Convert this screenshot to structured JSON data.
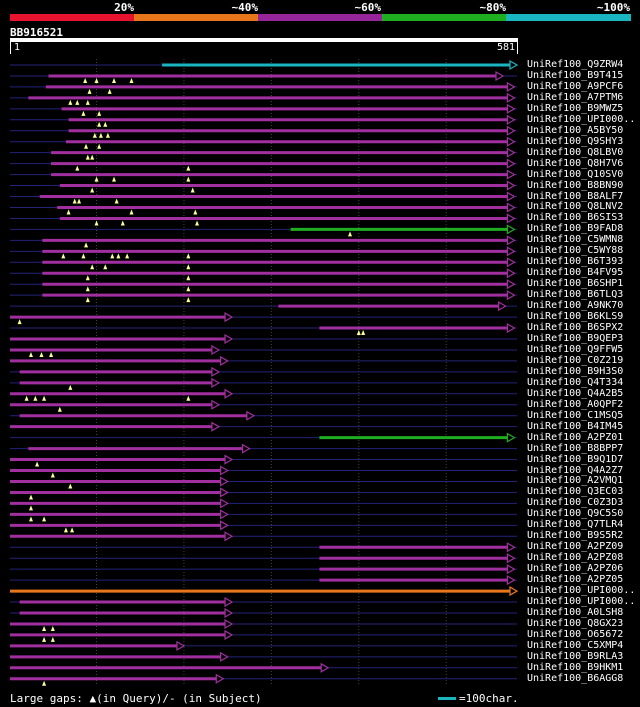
{
  "scale": {
    "labels": [
      "20%",
      "~40%",
      "~60%",
      "~80%",
      "~100%"
    ],
    "colors": [
      "#e8132e",
      "#e8761a",
      "#97259a",
      "#1fae20",
      "#19b6c2"
    ]
  },
  "query": {
    "name": "BB916521",
    "start": "1",
    "end": "581",
    "length": 581
  },
  "footer": {
    "left": "Large gaps: ▲(in Query)/- (in Subject)",
    "right": "=100char."
  },
  "colors": {
    "purple": "#a12fa0",
    "orange": "#e8761a",
    "green": "#1fae20",
    "cyan": "#19b6c2",
    "thin": "#23237a",
    "grid": "#444444",
    "arrow": "#ff88ff"
  },
  "chart_data": {
    "type": "alignment",
    "title": "BB916521",
    "x_range": [
      1,
      581
    ],
    "hits": [
      {
        "name": "UniRef100_Q9ZRW4",
        "start": 175,
        "end": 581,
        "color": "cyan",
        "ins": []
      },
      {
        "name": "UniRef100_B9T415",
        "start": 45,
        "end": 565,
        "color": "purple",
        "ins": [
          87,
          100,
          120,
          140
        ]
      },
      {
        "name": "UniRef100_A9PCF6",
        "start": 42,
        "end": 578,
        "color": "purple",
        "ins": [
          115,
          92
        ]
      },
      {
        "name": "UniRef100_A7PTM6",
        "start": 22,
        "end": 578,
        "color": "purple",
        "ins": [
          70,
          78,
          90
        ]
      },
      {
        "name": "UniRef100_B9MWZ5",
        "start": 60,
        "end": 578,
        "color": "purple",
        "ins": [
          85,
          103
        ]
      },
      {
        "name": "UniRef100_UPI000..",
        "start": 68,
        "end": 578,
        "color": "purple",
        "ins": [
          103,
          110
        ]
      },
      {
        "name": "UniRef100_A5BY50",
        "start": 68,
        "end": 578,
        "color": "purple",
        "ins": [
          98,
          105,
          113
        ]
      },
      {
        "name": "UniRef100_Q9SHY3",
        "start": 65,
        "end": 578,
        "color": "purple",
        "ins": [
          88,
          103
        ]
      },
      {
        "name": "UniRef100_Q8LBV0",
        "start": 48,
        "end": 578,
        "color": "purple",
        "ins": [
          90,
          95
        ]
      },
      {
        "name": "UniRef100_Q8H7V6",
        "start": 48,
        "end": 578,
        "color": "purple",
        "ins": [
          78,
          205
        ]
      },
      {
        "name": "UniRef100_Q10SV0",
        "start": 48,
        "end": 578,
        "color": "purple",
        "ins": [
          100,
          120,
          205
        ]
      },
      {
        "name": "UniRef100_B8BN90",
        "start": 58,
        "end": 578,
        "color": "purple",
        "ins": [
          95,
          210
        ]
      },
      {
        "name": "UniRef100_B8ALF7",
        "start": 35,
        "end": 578,
        "color": "purple",
        "ins": [
          75,
          80,
          123
        ]
      },
      {
        "name": "UniRef100_Q8LNV2",
        "start": 55,
        "end": 578,
        "color": "purple",
        "ins": [
          68,
          140,
          213
        ]
      },
      {
        "name": "UniRef100_B6SIS3",
        "start": 58,
        "end": 578,
        "color": "purple",
        "ins": [
          100,
          130,
          215
        ]
      },
      {
        "name": "UniRef100_B9FAD8",
        "start": 322,
        "end": 578,
        "color": "green",
        "ins": [
          390
        ]
      },
      {
        "name": "UniRef100_C5WMN8",
        "start": 38,
        "end": 578,
        "color": "purple",
        "ins": [
          88
        ]
      },
      {
        "name": "UniRef100_C5WY88",
        "start": 38,
        "end": 578,
        "color": "purple",
        "ins": [
          62,
          85,
          118,
          125,
          135,
          205
        ]
      },
      {
        "name": "UniRef100_B6T393",
        "start": 38,
        "end": 578,
        "color": "purple",
        "ins": [
          95,
          110,
          205
        ]
      },
      {
        "name": "UniRef100_B4FV95",
        "start": 38,
        "end": 578,
        "color": "purple",
        "ins": [
          90,
          205
        ]
      },
      {
        "name": "UniRef100_B6SHP1",
        "start": 38,
        "end": 578,
        "color": "purple",
        "ins": [
          90,
          205
        ]
      },
      {
        "name": "UniRef100_B6TLQ3",
        "start": 38,
        "end": 578,
        "color": "purple",
        "ins": [
          90,
          205
        ]
      },
      {
        "name": "UniRef100_A9NK70",
        "start": 308,
        "end": 568,
        "color": "purple",
        "ins": []
      },
      {
        "name": "UniRef100_B6KLS9",
        "start": 1,
        "end": 255,
        "color": "purple",
        "ins": [
          12
        ]
      },
      {
        "name": "UniRef100_B6SPX2",
        "start": 355,
        "end": 578,
        "color": "purple",
        "ins": [
          400,
          405
        ]
      },
      {
        "name": "UniRef100_B9QEP3",
        "start": 1,
        "end": 255,
        "color": "purple",
        "ins": []
      },
      {
        "name": "UniRef100_Q9FFW5",
        "start": 1,
        "end": 240,
        "color": "purple",
        "ins": [
          25,
          37,
          48
        ]
      },
      {
        "name": "UniRef100_C0Z219",
        "start": 1,
        "end": 250,
        "color": "purple",
        "ins": []
      },
      {
        "name": "UniRef100_B9H3S0",
        "start": 12,
        "end": 240,
        "color": "purple",
        "ins": []
      },
      {
        "name": "UniRef100_Q4T334",
        "start": 12,
        "end": 240,
        "color": "purple",
        "ins": [
          70
        ]
      },
      {
        "name": "UniRef100_Q4A2B5",
        "start": 1,
        "end": 255,
        "color": "purple",
        "ins": [
          20,
          30,
          40,
          205
        ]
      },
      {
        "name": "UniRef100_A0QPF2",
        "start": 1,
        "end": 240,
        "color": "purple",
        "ins": [
          58
        ]
      },
      {
        "name": "UniRef100_C1MSQ5",
        "start": 12,
        "end": 280,
        "color": "purple",
        "ins": []
      },
      {
        "name": "UniRef100_B4IM45",
        "start": 1,
        "end": 240,
        "color": "purple",
        "ins": []
      },
      {
        "name": "UniRef100_A2PZ01",
        "start": 355,
        "end": 578,
        "color": "green",
        "ins": []
      },
      {
        "name": "UniRef100_B8BPP7",
        "start": 22,
        "end": 275,
        "color": "purple",
        "ins": []
      },
      {
        "name": "UniRef100_B9Q1D7",
        "start": 1,
        "end": 255,
        "color": "purple",
        "ins": [
          32
        ]
      },
      {
        "name": "UniRef100_Q4A2Z7",
        "start": 1,
        "end": 250,
        "color": "purple",
        "ins": [
          50
        ]
      },
      {
        "name": "UniRef100_A2VMQ1",
        "start": 1,
        "end": 250,
        "color": "purple",
        "ins": [
          70
        ]
      },
      {
        "name": "UniRef100_Q3EC03",
        "start": 1,
        "end": 250,
        "color": "purple",
        "ins": [
          25
        ]
      },
      {
        "name": "UniRef100_C0Z3D3",
        "start": 1,
        "end": 250,
        "color": "purple",
        "ins": [
          25
        ]
      },
      {
        "name": "UniRef100_Q9C5S0",
        "start": 1,
        "end": 250,
        "color": "purple",
        "ins": [
          25,
          40
        ]
      },
      {
        "name": "UniRef100_Q7TLR4",
        "start": 1,
        "end": 250,
        "color": "purple",
        "ins": [
          65,
          72
        ]
      },
      {
        "name": "UniRef100_B9S5R2",
        "start": 1,
        "end": 255,
        "color": "purple",
        "ins": []
      },
      {
        "name": "UniRef100_A2PZ09",
        "start": 355,
        "end": 578,
        "color": "purple",
        "ins": []
      },
      {
        "name": "UniRef100_A2PZ08",
        "start": 355,
        "end": 578,
        "color": "purple",
        "ins": []
      },
      {
        "name": "UniRef100_A2PZ06",
        "start": 355,
        "end": 578,
        "color": "purple",
        "ins": []
      },
      {
        "name": "UniRef100_A2PZ05",
        "start": 355,
        "end": 578,
        "color": "purple",
        "ins": []
      },
      {
        "name": "UniRef100_UPI000..",
        "start": 1,
        "end": 581,
        "color": "orange",
        "ins": []
      },
      {
        "name": "UniRef100_UPI000..",
        "start": 12,
        "end": 255,
        "color": "purple",
        "ins": []
      },
      {
        "name": "UniRef100_A0LSH8",
        "start": 12,
        "end": 255,
        "color": "purple",
        "ins": []
      },
      {
        "name": "UniRef100_Q8GX23",
        "start": 1,
        "end": 255,
        "color": "purple",
        "ins": [
          40,
          50
        ]
      },
      {
        "name": "UniRef100_O65672",
        "start": 1,
        "end": 255,
        "color": "purple",
        "ins": [
          40,
          50
        ]
      },
      {
        "name": "UniRef100_C5XMP4",
        "start": 1,
        "end": 200,
        "color": "purple",
        "ins": []
      },
      {
        "name": "UniRef100_B9RLA3",
        "start": 1,
        "end": 250,
        "color": "purple",
        "ins": []
      },
      {
        "name": "UniRef100_B9HKM1",
        "start": 1,
        "end": 365,
        "color": "purple",
        "ins": []
      },
      {
        "name": "UniRef100_B6AGG8",
        "start": 1,
        "end": 245,
        "color": "purple",
        "ins": [
          40
        ]
      }
    ]
  }
}
